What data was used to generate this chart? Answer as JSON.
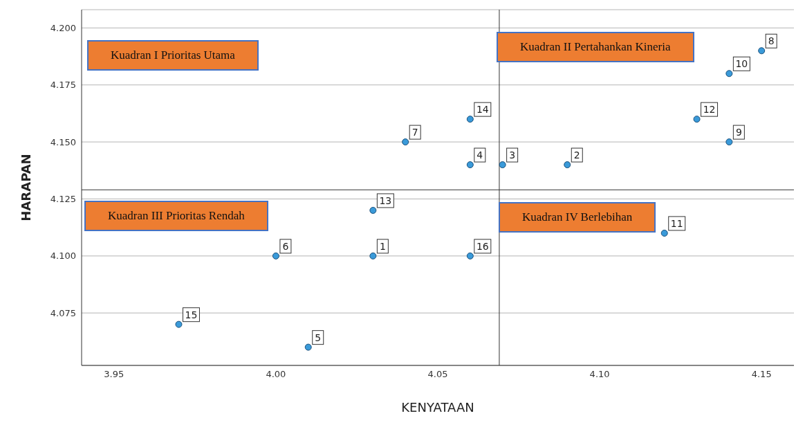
{
  "chart_data": {
    "type": "scatter",
    "xlabel": "KENYATAAN",
    "ylabel": "HARAPAN",
    "x": [
      4.03,
      4.09,
      4.07,
      4.06,
      4.01,
      4.0,
      4.04,
      4.15,
      4.14,
      4.14,
      4.12,
      4.13,
      4.03,
      4.06,
      3.97,
      4.06
    ],
    "series": [
      {
        "color": "#3a9ad9",
        "values": [
          4.1,
          4.14,
          4.14,
          4.14,
          4.06,
          4.1,
          4.15,
          4.19,
          4.15,
          4.18,
          4.11,
          4.16,
          4.12,
          4.16,
          4.07,
          4.1
        ]
      }
    ],
    "xlim": [
      3.94,
      4.16
    ],
    "xticks": [
      {
        "value": 3.95,
        "label": "3.95"
      },
      {
        "value": 4,
        "label": "4.00"
      },
      4.05,
      {
        "value": 4.1,
        "label": "4.10"
      },
      4.15
    ],
    "ylim": [
      4.052,
      4.208
    ],
    "yticks": [
      {
        "value": 4.075,
        "label": "4.075"
      },
      {
        "value": 4.1,
        "label": "4.100"
      },
      4.125,
      {
        "value": 4.15,
        "label": "4.150"
      },
      4.175,
      {
        "value": 4.2,
        "label": "4.200"
      }
    ],
    "ref_lines": [
      {
        "axis": "x",
        "value": 4.069,
        "color": "#333333"
      },
      {
        "axis": "y",
        "value": 4.129,
        "color": "#333333"
      }
    ],
    "annotations": [
      "Kuadran I Prioritas Utama",
      "Kuadran II Pertahankan Kineria",
      "Kuadran III Prioritas Rendah",
      "Kuadran IV Berlebihan",
      {
        "text": "1",
        "x": 4.03,
        "y": 4.1
      },
      {
        "text": "2",
        "x": 4.09,
        "y": 4.14
      },
      {
        "text": "3",
        "x": 4.07,
        "y": 4.14
      },
      {
        "text": "4",
        "x": 4.06,
        "y": 4.14
      },
      {
        "text": "5",
        "x": 4.01,
        "y": 4.06
      },
      {
        "text": "6",
        "x": 4.0,
        "y": 4.1
      },
      {
        "text": "7",
        "x": 4.04,
        "y": 4.15
      },
      {
        "text": "8",
        "x": 4.15,
        "y": 4.19
      },
      {
        "text": "9",
        "x": 4.14,
        "y": 4.15
      },
      {
        "text": "10",
        "x": 4.14,
        "y": 4.18
      },
      {
        "text": "11",
        "x": 4.12,
        "y": 4.11
      },
      {
        "text": "12",
        "x": 4.13,
        "y": 4.16
      },
      {
        "text": "13",
        "x": 4.03,
        "y": 4.12
      },
      {
        "text": "14",
        "x": 4.06,
        "y": 4.16
      },
      {
        "text": "15",
        "x": 3.97,
        "y": 4.07
      },
      {
        "text": "16",
        "x": 4.06,
        "y": 4.1
      }
    ],
    "grid": "y",
    "marker": "circle"
  }
}
